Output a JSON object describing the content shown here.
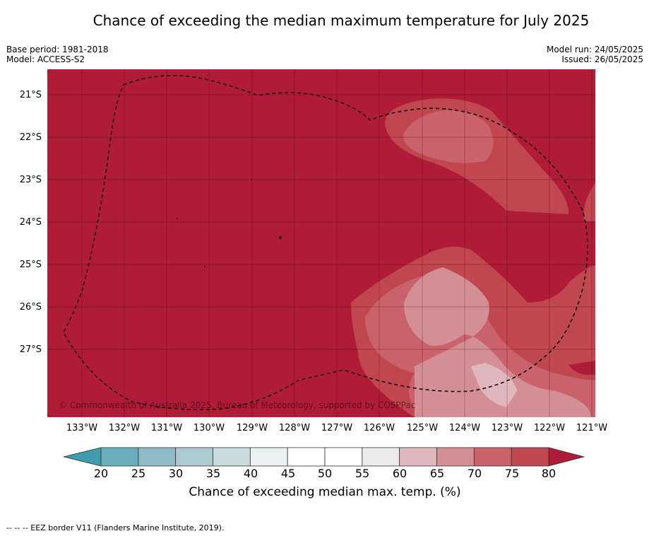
{
  "title": "Chance of exceeding the median maximum temperature for July 2025",
  "meta": {
    "base_period": "Base period: 1981-2018",
    "model": "Model: ACCESS-S2",
    "model_run": "Model run: 24/05/2025",
    "issued": "Issued: 26/05/2025"
  },
  "map": {
    "latitude_labels": [
      "21°S",
      "22°S",
      "23°S",
      "24°S",
      "25°S",
      "26°S",
      "27°S"
    ],
    "longitude_labels": [
      "133°W",
      "132°W",
      "131°W",
      "130°W",
      "129°W",
      "128°W",
      "127°W",
      "126°W",
      "125°W",
      "124°W",
      "123°W",
      "122°W",
      "121°W"
    ],
    "copyright": "© Commonwealth of Australia 2025, Bureau of Meteorology, supported by COSPPac",
    "colors": {
      "above_80": "#b01c37",
      "c75_80": "#c0464f",
      "c70_75": "#c9626c",
      "c65_70": "#d48e96",
      "c60_65": "#e0b7bc",
      "c55_60": "#ebebeb",
      "below_20": "#3e9cad"
    }
  },
  "colorbar": {
    "ticks": [
      "20",
      "25",
      "30",
      "35",
      "40",
      "45",
      "50",
      "55",
      "60",
      "65",
      "70",
      "75",
      "80"
    ],
    "colors": [
      "#6aaebc",
      "#8ebbc6",
      "#abcbd1",
      "#cadbdf",
      "#eaf1f3",
      "#ffffff",
      "#ffffff",
      "#ebebeb",
      "#e0b7bc",
      "#d48e96",
      "#c9626c",
      "#c0464f"
    ],
    "under_color": "#3e9cad",
    "over_color": "#b01c37",
    "label": "Chance of exceeding median max. temp. (%)"
  },
  "footer": "-- -- -- EEZ border V11 (Flanders Marine Institute, 2019)."
}
